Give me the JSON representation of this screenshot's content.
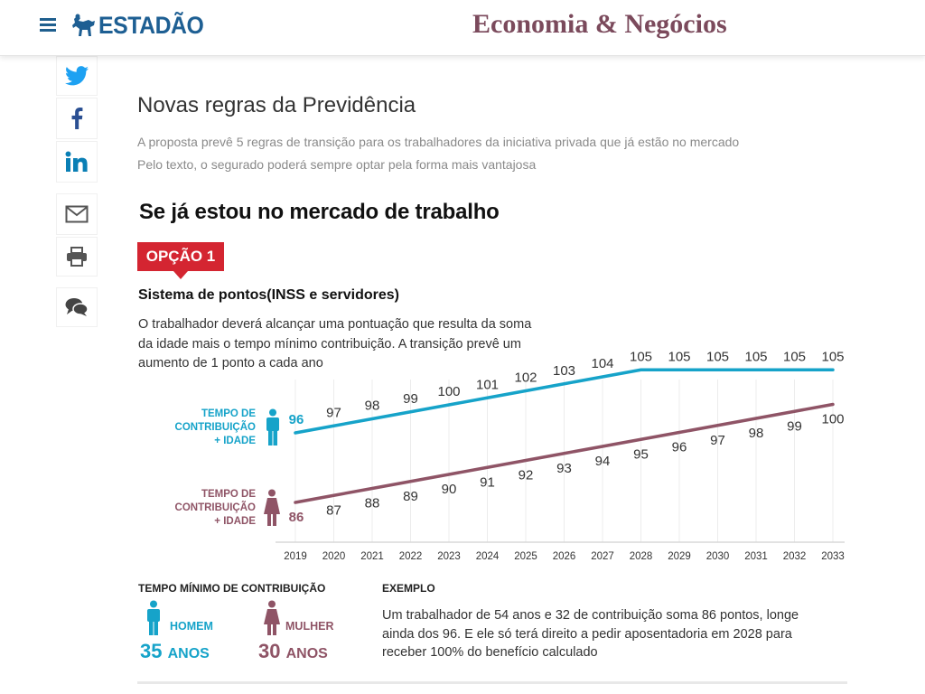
{
  "header": {
    "brand": "ESTADÃO",
    "section": "Economia & Negócios",
    "colors": {
      "brand": "#1e5f93",
      "section": "#7b4a5c"
    }
  },
  "share": [
    {
      "name": "twitter-icon",
      "label": "Twitter"
    },
    {
      "name": "facebook-icon",
      "label": "Facebook"
    },
    {
      "name": "linkedin-icon",
      "label": "LinkedIn"
    },
    {
      "name": "email-icon",
      "label": "E-mail"
    },
    {
      "name": "print-icon",
      "label": "Imprimir"
    },
    {
      "name": "comments-icon",
      "label": "Comentários"
    }
  ],
  "article": {
    "title": "Novas regras da Previdência",
    "lead_1": "A proposta prevê 5 regras de transição para os trabalhadores da iniciativa privada que já estão no mercado",
    "lead_2": "Pelo texto, o segurado poderá sempre optar pela forma mais vantajosa",
    "heading": "Se já estou no mercado de trabalho",
    "option_badge": "OPÇÃO 1",
    "subheading": "Sistema de pontos(INSS e servidores)",
    "description": "O trabalhador deverá alcançar uma pontuação que resulta da soma da idade mais o tempo mínimo contribuição. A transição prevê um aumento de 1 ponto a cada ano"
  },
  "chart_data": {
    "type": "line",
    "title": "Sistema de pontos(INSS e servidores)",
    "xlabel": "",
    "ylabel": "",
    "x": [
      2019,
      2020,
      2021,
      2022,
      2023,
      2024,
      2025,
      2026,
      2027,
      2028,
      2029,
      2030,
      2031,
      2032,
      2033
    ],
    "series": [
      {
        "name": "Homem",
        "label_lines": [
          "TEMPO DE",
          "CONTRIBUIÇÃO",
          "+ IDADE"
        ],
        "color": "#16a3c9",
        "values": [
          96,
          97,
          98,
          99,
          100,
          101,
          102,
          103,
          104,
          105,
          105,
          105,
          105,
          105,
          105
        ]
      },
      {
        "name": "Mulher",
        "label_lines": [
          "TEMPO DE",
          "CONTRIBUIÇÃO",
          "+ IDADE"
        ],
        "color": "#8f5466",
        "values": [
          86,
          87,
          88,
          89,
          90,
          91,
          92,
          93,
          94,
          95,
          96,
          97,
          98,
          99,
          100
        ]
      }
    ],
    "grid": "vertical",
    "legend": "left"
  },
  "minimum": {
    "title": "TEMPO MÍNIMO DE CONTRIBUIÇÃO",
    "men": {
      "label": "HOMEM",
      "years": "35",
      "unit": "ANOS"
    },
    "women": {
      "label": "MULHER",
      "years": "30",
      "unit": "ANOS"
    }
  },
  "example": {
    "title": "EXEMPLO",
    "text": "Um trabalhador de 54 anos e 32 de contribuição soma 86 pontos, longe ainda dos 96. E ele só terá direito a pedir aposentadoria em 2028 para receber 100% do benefício calculado"
  }
}
